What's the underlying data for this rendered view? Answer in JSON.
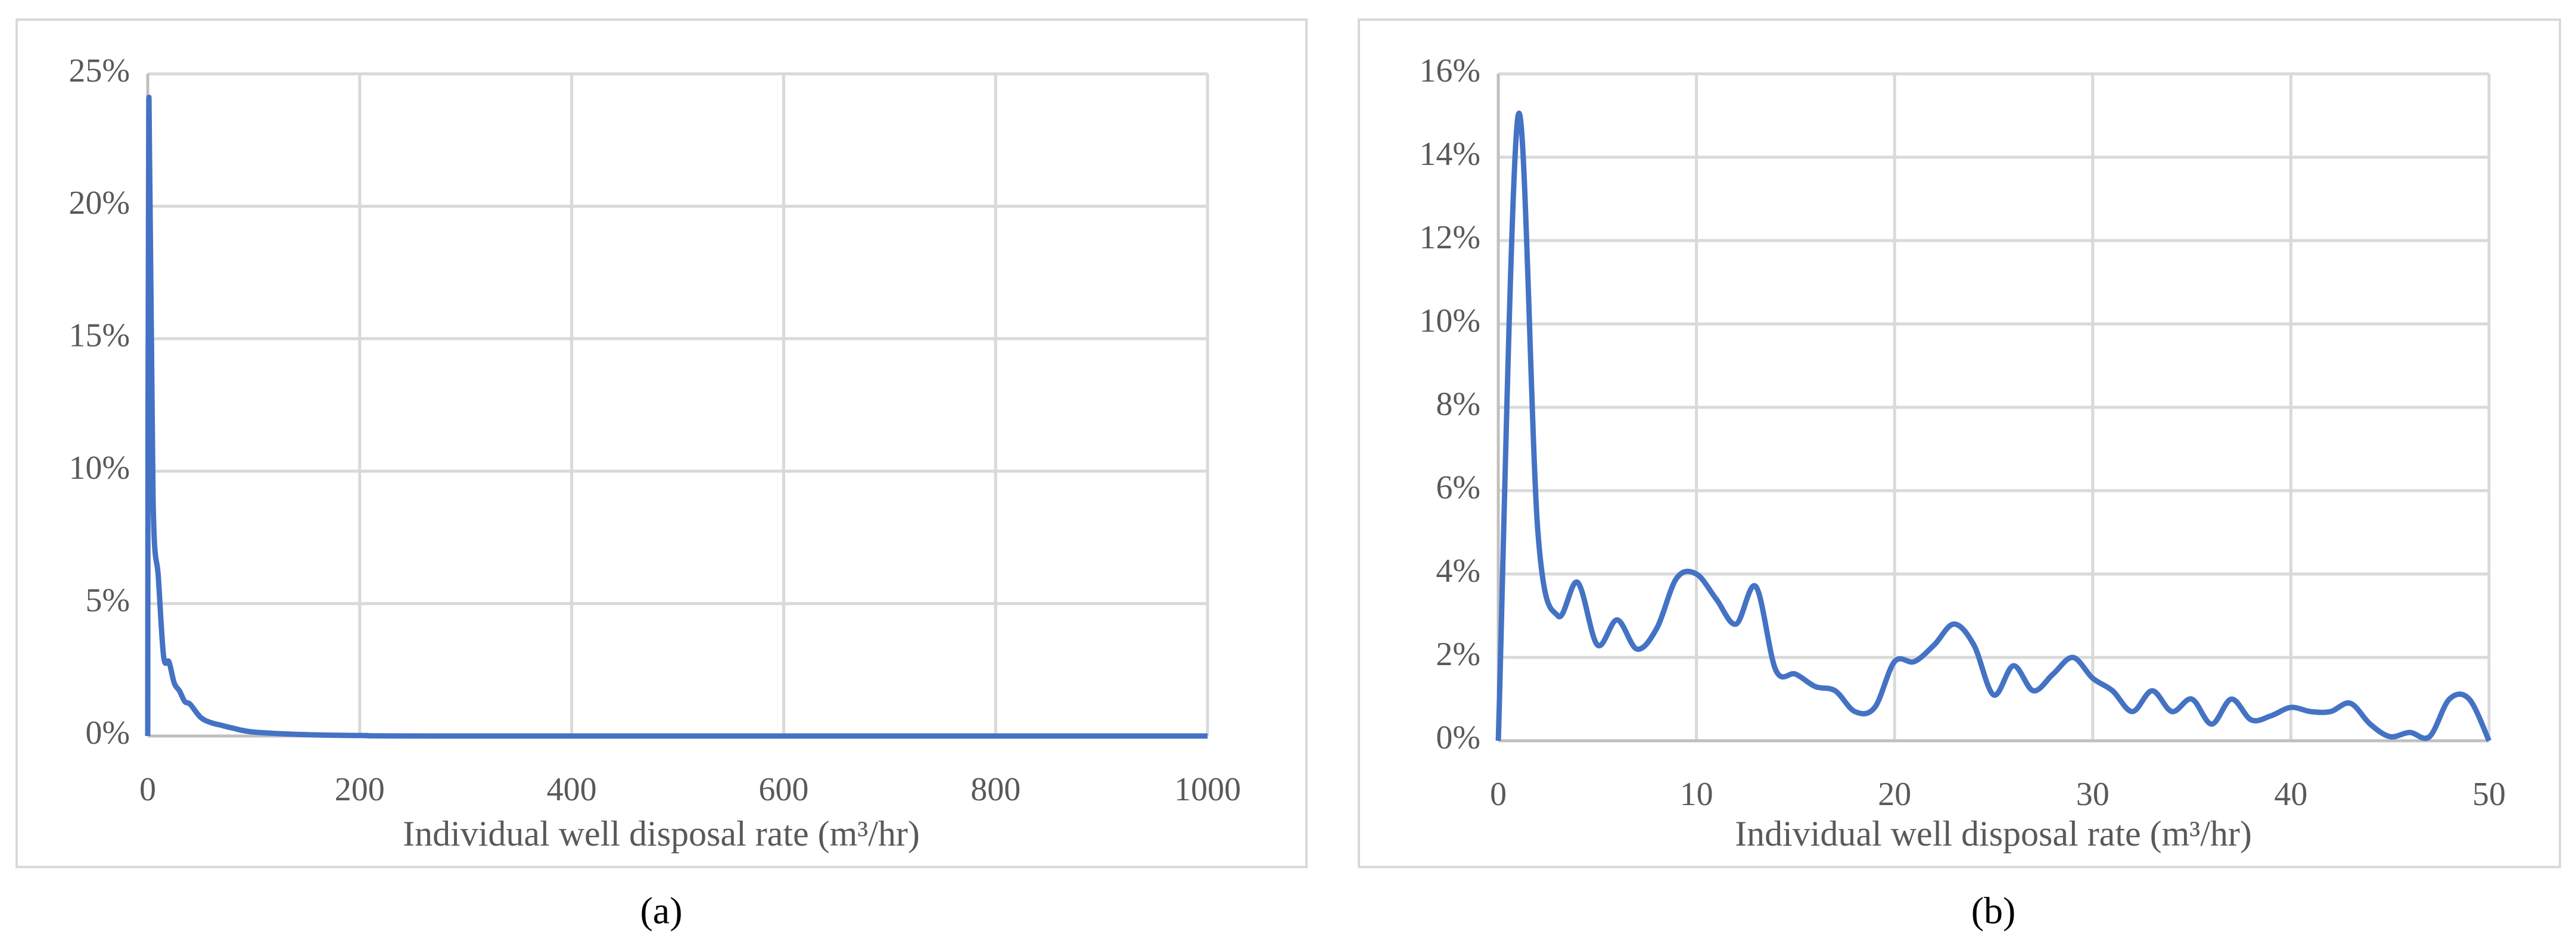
{
  "chart_data": [
    {
      "type": "line",
      "caption": "(a)",
      "xlabel": "Individual well disposal rate (m³/hr)",
      "color": "#4472c4",
      "grid": true,
      "xlim": [
        0,
        1000
      ],
      "xticks": [
        0,
        200,
        400,
        600,
        800,
        1000
      ],
      "ylim": [
        0,
        25
      ],
      "yticks": [
        {
          "value": 0,
          "label": "0%"
        },
        {
          "value": 5,
          "label": "5%"
        },
        {
          "value": 10,
          "label": "10%"
        },
        {
          "value": 15,
          "label": "15%"
        },
        {
          "value": 20,
          "label": "20%"
        },
        {
          "value": 25,
          "label": "25%"
        }
      ],
      "x": [
        0,
        1,
        5,
        10,
        15,
        20,
        25,
        30,
        35,
        40,
        50,
        60,
        70,
        80,
        100,
        150,
        200,
        300,
        1000
      ],
      "values": [
        0,
        24,
        9,
        6,
        3,
        2.8,
        2,
        1.7,
        1.3,
        1.2,
        0.7,
        0.5,
        0.4,
        0.3,
        0.15,
        0.05,
        0.02,
        0,
        0
      ]
    },
    {
      "type": "line",
      "caption": "(b)",
      "xlabel": "Individual well disposal rate (m³/hr)",
      "color": "#4472c4",
      "grid": true,
      "xlim": [
        0,
        50
      ],
      "xticks": [
        0,
        10,
        20,
        30,
        40,
        50
      ],
      "ylim": [
        0,
        16
      ],
      "yticks": [
        {
          "value": 0,
          "label": "0%"
        },
        {
          "value": 2,
          "label": "2%"
        },
        {
          "value": 4,
          "label": "4%"
        },
        {
          "value": 6,
          "label": "6%"
        },
        {
          "value": 8,
          "label": "8%"
        },
        {
          "value": 10,
          "label": "10%"
        },
        {
          "value": 12,
          "label": "12%"
        },
        {
          "value": 14,
          "label": "14%"
        },
        {
          "value": 16,
          "label": "16%"
        }
      ],
      "x": [
        0,
        1,
        2,
        3,
        4,
        5,
        6,
        7,
        8,
        9,
        10,
        11,
        12,
        13,
        14,
        15,
        16,
        17,
        18,
        19,
        20,
        21,
        22,
        23,
        24,
        25,
        26,
        27,
        28,
        29,
        30,
        31,
        32,
        33,
        34,
        35,
        36,
        37,
        38,
        39,
        40,
        41,
        42,
        43,
        44,
        45,
        46,
        47,
        48,
        49,
        50
      ],
      "values": [
        0,
        15,
        5,
        3,
        3.8,
        2.3,
        2.9,
        2.2,
        2.7,
        3.9,
        4,
        3.4,
        2.8,
        3.7,
        1.7,
        1.6,
        1.3,
        1.2,
        0.7,
        0.8,
        1.9,
        1.9,
        2.3,
        2.8,
        2.3,
        1.1,
        1.8,
        1.2,
        1.6,
        2.0,
        1.5,
        1.2,
        0.7,
        1.2,
        0.7,
        1.0,
        0.4,
        1.0,
        0.5,
        0.6,
        0.8,
        0.7,
        0.7,
        0.9,
        0.4,
        0.1,
        0.2,
        0.1,
        1.0,
        1.0,
        0
      ]
    }
  ]
}
